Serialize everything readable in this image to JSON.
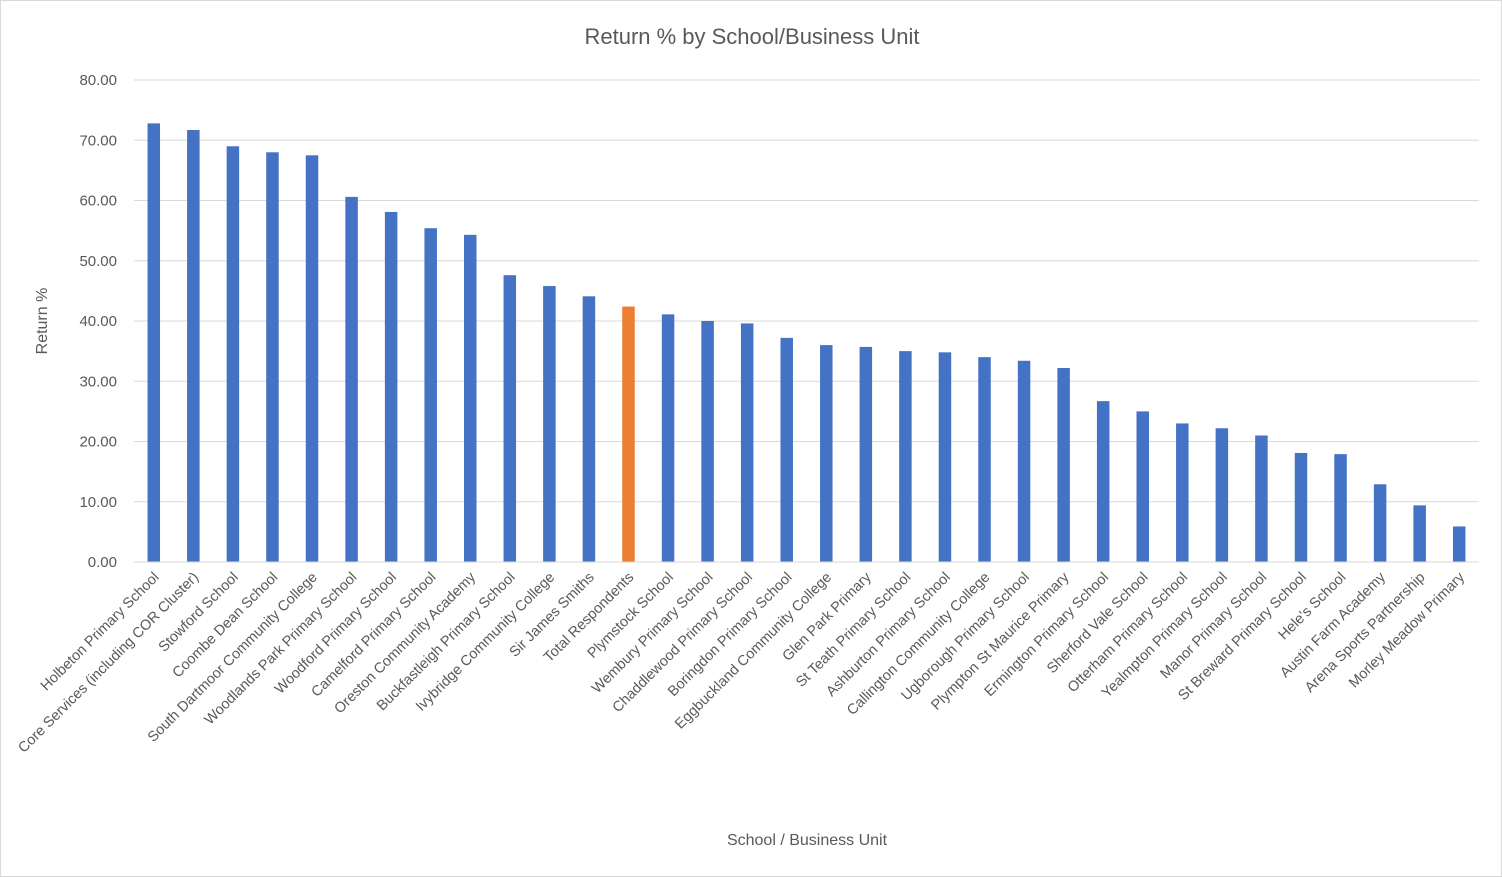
{
  "chart_data": {
    "type": "bar",
    "title": "Return % by School/Business Unit",
    "xlabel": "School / Business Unit",
    "ylabel": "Return %",
    "ylim": [
      0,
      80
    ],
    "yticks": [
      "0.00",
      "10.00",
      "20.00",
      "30.00",
      "40.00",
      "50.00",
      "60.00",
      "70.00",
      "80.00"
    ],
    "grid": true,
    "legend": "none",
    "colors": {
      "bar": "#4472C4",
      "highlight": "#ED7D31"
    },
    "highlight_category": "Total Respondents",
    "categories": [
      "Holbeton Primary School",
      "Core Services (including COR Cluster)",
      "Stowford School",
      "Coombe Dean School",
      "South Dartmoor Community College",
      "Woodlands Park Primary School",
      "Woodford Primary School",
      "Camelford Primary School",
      "Oreston Community Academy",
      "Buckfastleigh Primary School",
      "Ivybridge Community College",
      "Sir James Smiths",
      "Total Respondents",
      "Plymstock School",
      "Wembury Primary School",
      "Chaddlewood Primary School",
      "Boringdon Primary School",
      "Eggbuckland Community College",
      "Glen Park Primary",
      "St Teath Primary School",
      "Ashburton Primary School",
      "Callington Community College",
      "Ugborough Primary School",
      "Plympton St Maurice Primary",
      "Ermington Primary School",
      "Sherford Vale School",
      "Otterham Primary School",
      "Yealmpton Primary School",
      "Manor Primary School",
      "St Breward Primary School",
      "Hele's School",
      "Austin Farm Academy",
      "Arena Sports Partnership",
      "Morley Meadow Primary"
    ],
    "values": [
      72.8,
      71.7,
      69.0,
      68.0,
      67.5,
      60.6,
      58.1,
      55.4,
      54.3,
      47.6,
      45.8,
      44.1,
      42.4,
      41.1,
      40.0,
      39.6,
      37.2,
      36.0,
      35.7,
      35.0,
      34.8,
      34.0,
      33.4,
      32.2,
      26.7,
      25.0,
      23.0,
      22.2,
      21.0,
      18.1,
      17.9,
      12.9,
      9.4,
      5.9
    ]
  }
}
